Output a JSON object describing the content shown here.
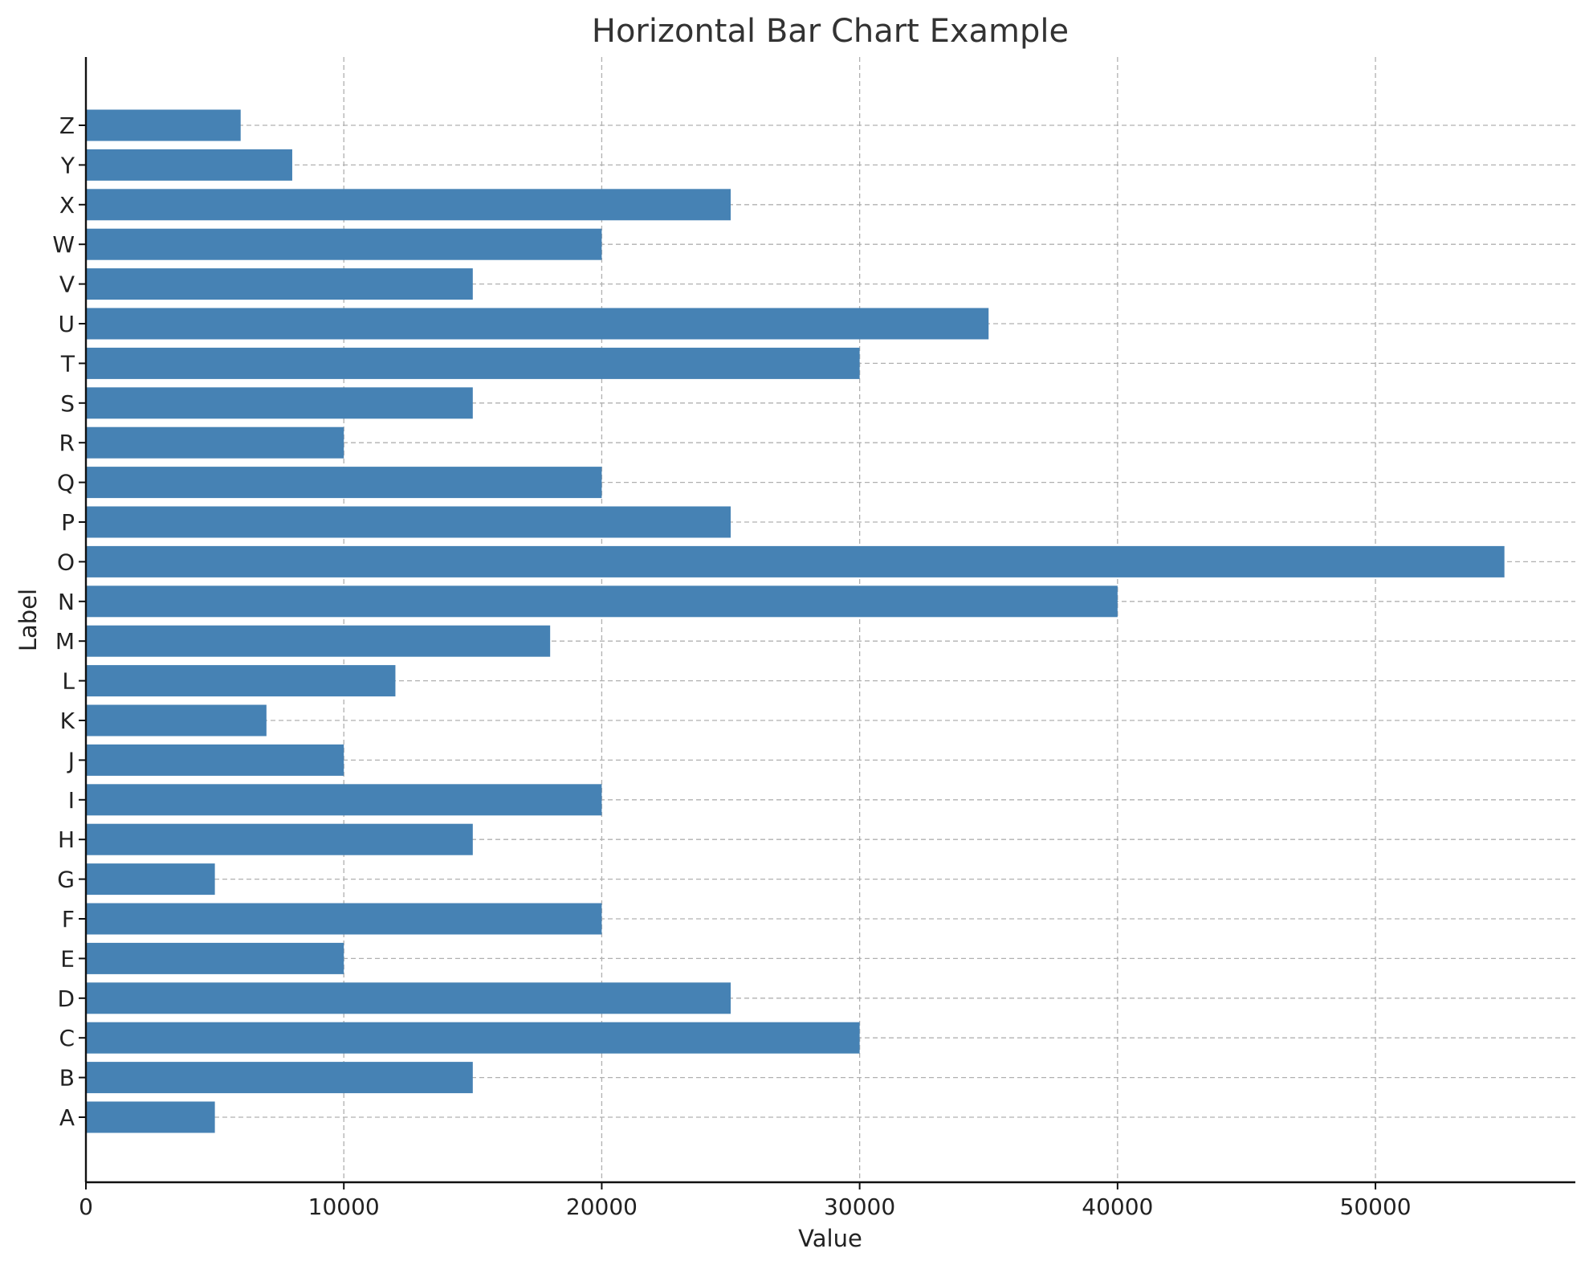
{
  "chart_data": {
    "type": "bar",
    "orientation": "horizontal",
    "title": "Horizontal Bar Chart Example",
    "xlabel": "Value",
    "ylabel": "Label",
    "categories": [
      "A",
      "B",
      "C",
      "D",
      "E",
      "F",
      "G",
      "H",
      "I",
      "J",
      "K",
      "L",
      "M",
      "N",
      "O",
      "P",
      "Q",
      "R",
      "S",
      "T",
      "U",
      "V",
      "W",
      "X",
      "Y",
      "Z"
    ],
    "values": [
      5000,
      15000,
      30000,
      25000,
      10000,
      20000,
      5000,
      15000,
      20000,
      10000,
      7000,
      12000,
      18000,
      40000,
      55000,
      25000,
      20000,
      10000,
      15000,
      30000,
      35000,
      15000,
      20000,
      25000,
      8000,
      6000
    ],
    "xlim": [
      0,
      57750
    ],
    "xticks": [
      0,
      10000,
      20000,
      30000,
      40000,
      50000
    ],
    "xtick_labels": [
      "0",
      "10000",
      "20000",
      "30000",
      "40000",
      "50000"
    ],
    "grid": true,
    "grid_style": "dashed",
    "bar_color": "#4682b4"
  }
}
